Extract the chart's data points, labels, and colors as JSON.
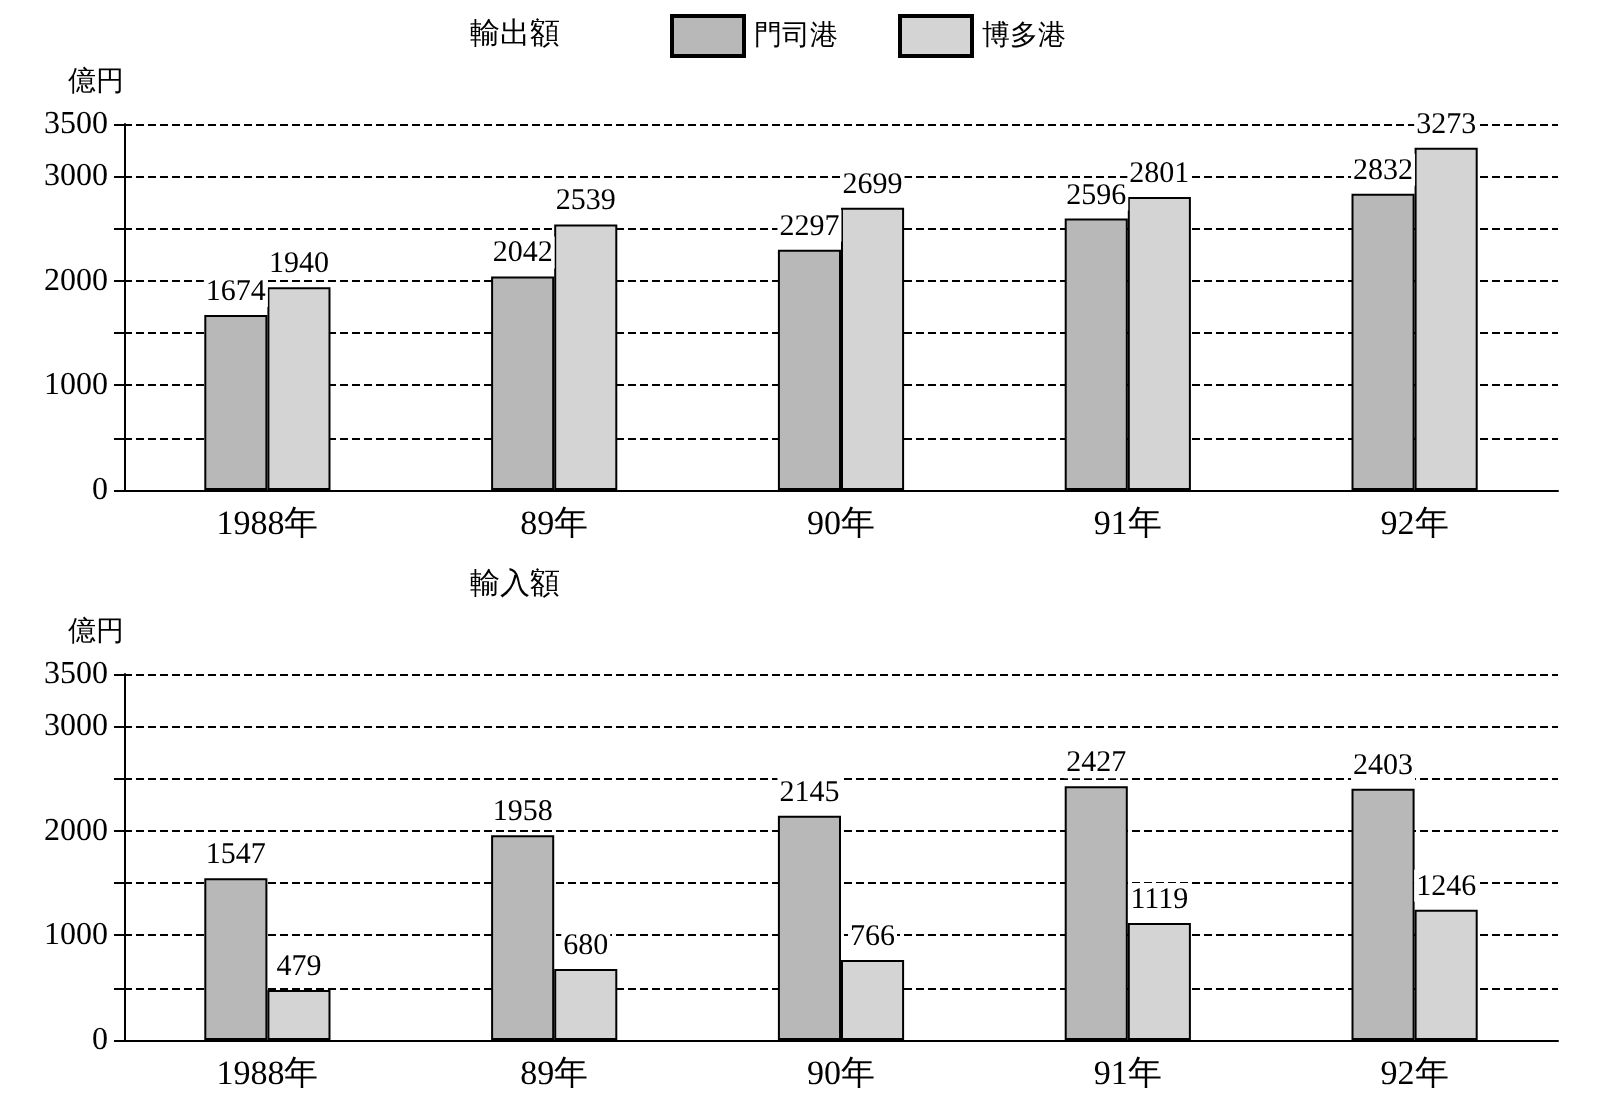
{
  "chart_data": [
    {
      "type": "bar",
      "title": "輸出額",
      "ylabel": "億円",
      "categories": [
        "1988年",
        "89年",
        "90年",
        "91年",
        "92年"
      ],
      "series": [
        {
          "name": "門司港",
          "color": "#b8b8b8",
          "values": [
            1674,
            2042,
            2297,
            2596,
            2832
          ]
        },
        {
          "name": "博多港",
          "color": "#d4d4d4",
          "values": [
            1940,
            2539,
            2699,
            2801,
            3273
          ]
        }
      ],
      "ylim": [
        0,
        3500
      ],
      "yticks": [
        0,
        {
          "value": 500,
          "label": null
        },
        1000,
        {
          "value": 1500,
          "label": null
        },
        2000,
        {
          "value": 2500,
          "label": null
        },
        3000,
        3500
      ],
      "grid": "y",
      "legend": "top",
      "data_labels": true
    },
    {
      "type": "bar",
      "title": "輸入額",
      "ylabel": "億円",
      "categories": [
        "1988年",
        "89年",
        "90年",
        "91年",
        "92年"
      ],
      "series": [
        {
          "color": "#b8b8b8",
          "values": [
            1547,
            1958,
            2145,
            2427,
            2403
          ]
        },
        {
          "color": "#d4d4d4",
          "values": [
            479,
            680,
            766,
            1119,
            1246
          ]
        }
      ],
      "ylim": [
        0,
        3500
      ],
      "yticks": [
        0,
        {
          "value": 500,
          "label": null
        },
        1000,
        {
          "value": 1500,
          "label": null
        },
        2000,
        {
          "value": 2500,
          "label": null
        },
        3000,
        3500
      ],
      "grid": "y",
      "data_labels": true
    }
  ]
}
